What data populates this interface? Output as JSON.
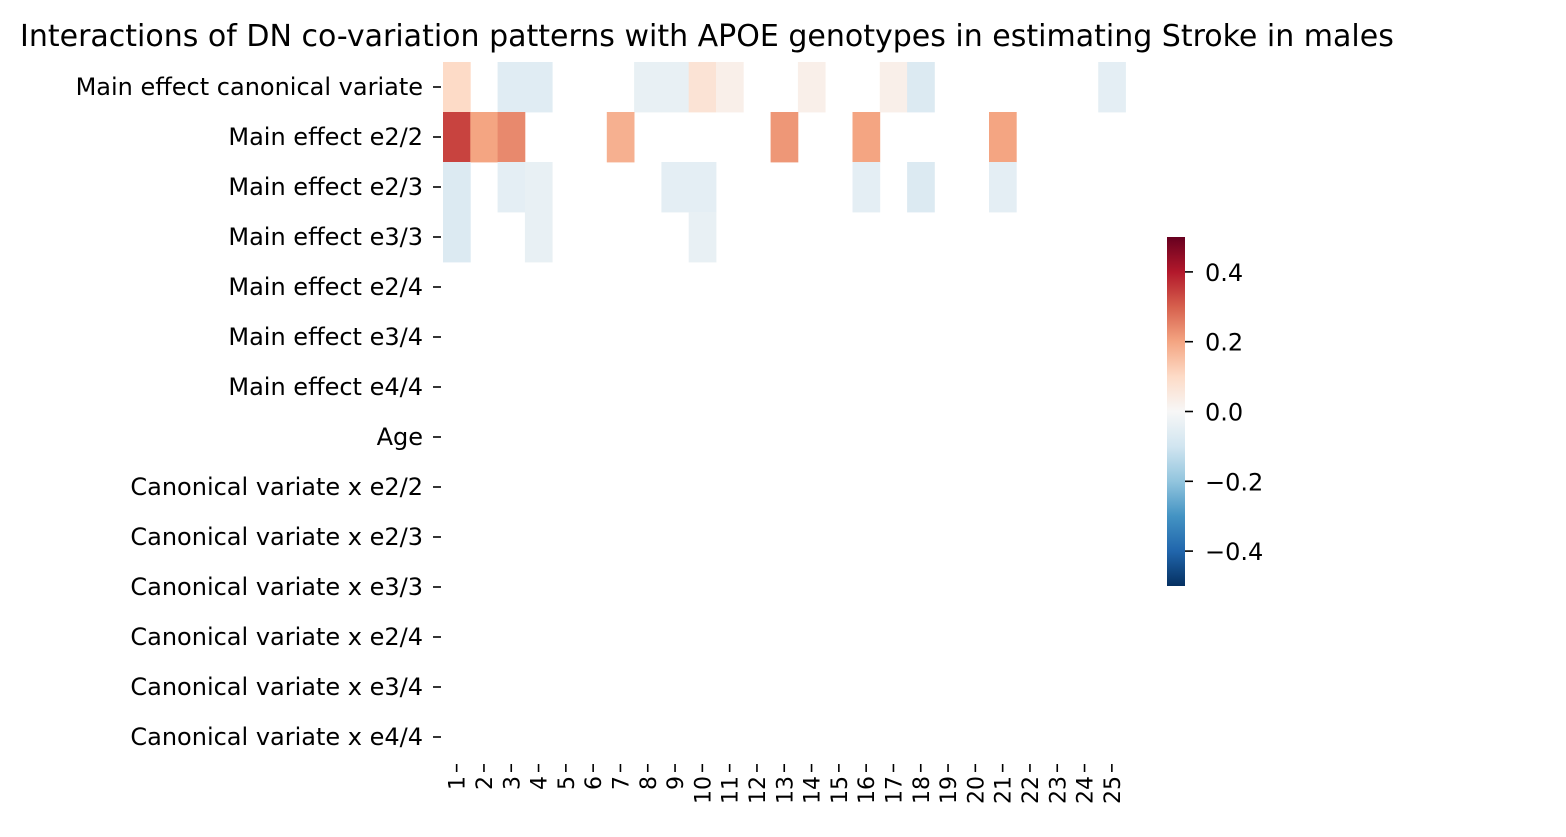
{
  "chart_data": {
    "type": "heatmap",
    "title": "Interactions of DN co-variation patterns with APOE genotypes in estimating Stroke in males",
    "rows": [
      "Main effect canonical variate",
      "Main effect e2/2",
      "Main effect e2/3",
      "Main effect e3/3",
      "Main effect e2/4",
      "Main effect e3/4",
      "Main effect e4/4",
      "Age",
      "Canonical variate x e2/2",
      "Canonical variate x e2/3",
      "Canonical variate x e3/3",
      "Canonical variate x e2/4",
      "Canonical variate x e3/4",
      "Canonical variate x e4/4"
    ],
    "columns": [
      "1",
      "2",
      "3",
      "4",
      "5",
      "6",
      "7",
      "8",
      "9",
      "10",
      "11",
      "12",
      "13",
      "14",
      "15",
      "16",
      "17",
      "18",
      "19",
      "20",
      "21",
      "22",
      "23",
      "24",
      "25"
    ],
    "values": [
      [
        0.1,
        0,
        -0.06,
        -0.06,
        0,
        0,
        0,
        -0.04,
        -0.04,
        0.07,
        0.03,
        0,
        0,
        0.03,
        0,
        0,
        0.03,
        -0.07,
        0,
        0,
        0,
        0,
        0,
        0,
        -0.05
      ],
      [
        0.34,
        0.2,
        0.24,
        0,
        0,
        0,
        0.18,
        0,
        0,
        0,
        0,
        0,
        0.22,
        0,
        0,
        0.2,
        0,
        0,
        0,
        0,
        0.2,
        0,
        0,
        0,
        0
      ],
      [
        -0.07,
        0,
        -0.05,
        -0.04,
        0,
        0,
        0,
        0,
        -0.05,
        -0.05,
        0,
        0,
        0,
        0,
        0,
        -0.05,
        0,
        -0.07,
        0,
        0,
        -0.05,
        0,
        0,
        0,
        0
      ],
      [
        -0.07,
        0,
        0,
        -0.04,
        0,
        0,
        0,
        0,
        0,
        -0.04,
        0,
        0,
        0,
        0,
        0,
        0,
        0,
        0,
        0,
        0,
        0,
        0,
        0,
        0,
        0
      ],
      [
        0,
        0,
        0,
        0,
        0,
        0,
        0,
        0,
        0,
        0,
        0,
        0,
        0,
        0,
        0,
        0,
        0,
        0,
        0,
        0,
        0,
        0,
        0,
        0,
        0
      ],
      [
        0,
        0,
        0,
        0,
        0,
        0,
        0,
        0,
        0,
        0,
        0,
        0,
        0,
        0,
        0,
        0,
        0,
        0,
        0,
        0,
        0,
        0,
        0,
        0,
        0
      ],
      [
        0,
        0,
        0,
        0,
        0,
        0,
        0,
        0,
        0,
        0,
        0,
        0,
        0,
        0,
        0,
        0,
        0,
        0,
        0,
        0,
        0,
        0,
        0,
        0,
        0
      ],
      [
        0,
        0,
        0,
        0,
        0,
        0,
        0,
        0,
        0,
        0,
        0,
        0,
        0,
        0,
        0,
        0,
        0,
        0,
        0,
        0,
        0,
        0,
        0,
        0,
        0
      ],
      [
        0,
        0,
        0,
        0,
        0,
        0,
        0,
        0,
        0,
        0,
        0,
        0,
        0,
        0,
        0,
        0,
        0,
        0,
        0,
        0,
        0,
        0,
        0,
        0,
        0
      ],
      [
        0,
        0,
        0,
        0,
        0,
        0,
        0,
        0,
        0,
        0,
        0,
        0,
        0,
        0,
        0,
        0,
        0,
        0,
        0,
        0,
        0,
        0,
        0,
        0,
        0
      ],
      [
        0,
        0,
        0,
        0,
        0,
        0,
        0,
        0,
        0,
        0,
        0,
        0,
        0,
        0,
        0,
        0,
        0,
        0,
        0,
        0,
        0,
        0,
        0,
        0,
        0
      ],
      [
        0,
        0,
        0,
        0,
        0,
        0,
        0,
        0,
        0,
        0,
        0,
        0,
        0,
        0,
        0,
        0,
        0,
        0,
        0,
        0,
        0,
        0,
        0,
        0,
        0
      ],
      [
        0,
        0,
        0,
        0,
        0,
        0,
        0,
        0,
        0,
        0,
        0,
        0,
        0,
        0,
        0,
        0,
        0,
        0,
        0,
        0,
        0,
        0,
        0,
        0,
        0
      ],
      [
        0,
        0,
        0,
        0,
        0,
        0,
        0,
        0,
        0,
        0,
        0,
        0,
        0,
        0,
        0,
        0,
        0,
        0,
        0,
        0,
        0,
        0,
        0,
        0,
        0
      ]
    ],
    "zero_cells": "blank",
    "colormap": "RdBu_r",
    "vmin": -0.5,
    "vmax": 0.5,
    "colorbar_ticks": [
      0.4,
      0.2,
      0.0,
      -0.2,
      -0.4
    ],
    "colorbar_tick_labels": [
      "0.4",
      "0.2",
      "0.0",
      "−0.2",
      "−0.4"
    ],
    "legend_position": "right"
  }
}
